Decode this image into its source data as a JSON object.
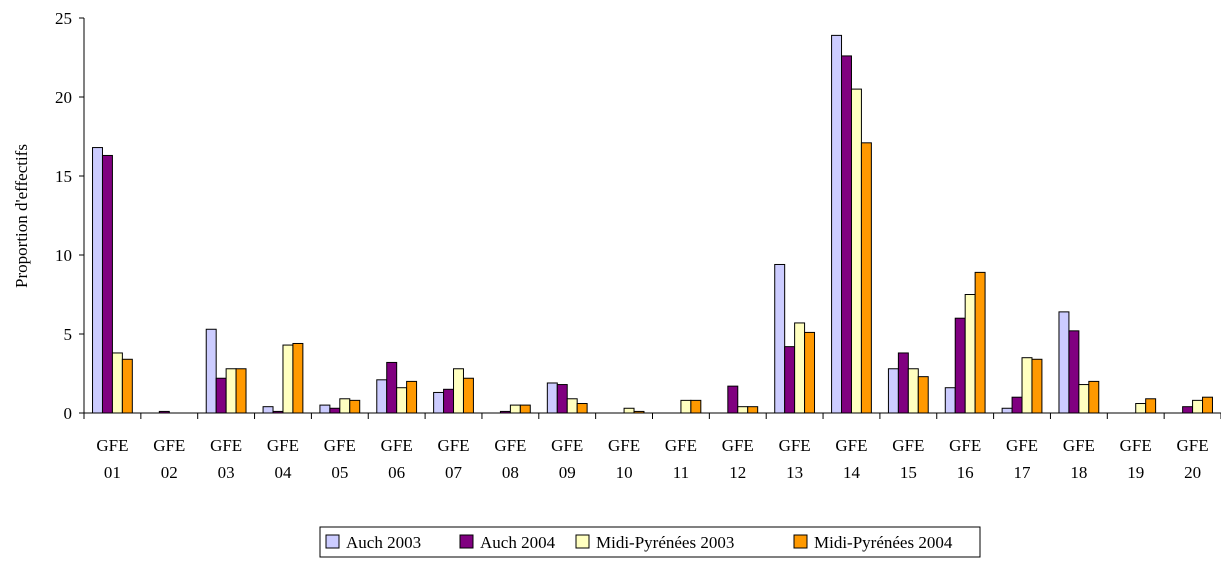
{
  "chart_data": {
    "type": "bar",
    "title": "",
    "xlabel": "",
    "ylabel": "Proportion d'effectifs",
    "ylim": [
      0,
      25
    ],
    "yticks": [
      0,
      5,
      10,
      15,
      20,
      25
    ],
    "grid": false,
    "legend_position": "bottom",
    "categories": [
      [
        "GFE",
        "01"
      ],
      [
        "GFE",
        "02"
      ],
      [
        "GFE",
        "03"
      ],
      [
        "GFE",
        "04"
      ],
      [
        "GFE",
        "05"
      ],
      [
        "GFE",
        "06"
      ],
      [
        "GFE",
        "07"
      ],
      [
        "GFE",
        "08"
      ],
      [
        "GFE",
        "09"
      ],
      [
        "GFE",
        "10"
      ],
      [
        "GFE",
        "11"
      ],
      [
        "GFE",
        "12"
      ],
      [
        "GFE",
        "13"
      ],
      [
        "GFE",
        "14"
      ],
      [
        "GFE",
        "15"
      ],
      [
        "GFE",
        "16"
      ],
      [
        "GFE",
        "17"
      ],
      [
        "GFE",
        "18"
      ],
      [
        "GFE",
        "19"
      ],
      [
        "GFE",
        "20"
      ]
    ],
    "series": [
      {
        "name": "Auch 2003",
        "color": "#ccccff",
        "values": [
          16.8,
          0,
          5.3,
          0.4,
          0.5,
          2.1,
          1.3,
          0,
          1.9,
          0,
          0,
          0,
          9.4,
          23.9,
          2.8,
          1.6,
          0.3,
          6.4,
          0,
          0
        ]
      },
      {
        "name": "Auch 2004",
        "color": "#800080",
        "values": [
          16.3,
          0.1,
          2.2,
          0.1,
          0.3,
          3.2,
          1.5,
          0.1,
          1.8,
          0,
          0,
          1.7,
          4.2,
          22.6,
          3.8,
          6.0,
          1.0,
          5.2,
          0,
          0.4
        ]
      },
      {
        "name": "Midi-Pyrénées 2003",
        "color": "#ffffc0",
        "values": [
          3.8,
          0,
          2.8,
          4.3,
          0.9,
          1.6,
          2.8,
          0.5,
          0.9,
          0.3,
          0.8,
          0.4,
          5.7,
          20.5,
          2.8,
          7.5,
          3.5,
          1.8,
          0.6,
          0.8
        ]
      },
      {
        "name": "Midi-Pyrénées 2004",
        "color": "#ff9900",
        "values": [
          3.4,
          0,
          2.8,
          4.4,
          0.8,
          2.0,
          2.2,
          0.5,
          0.6,
          0.1,
          0.8,
          0.4,
          5.1,
          17.1,
          2.3,
          8.9,
          3.4,
          2.0,
          0.9,
          1.0
        ]
      }
    ]
  }
}
